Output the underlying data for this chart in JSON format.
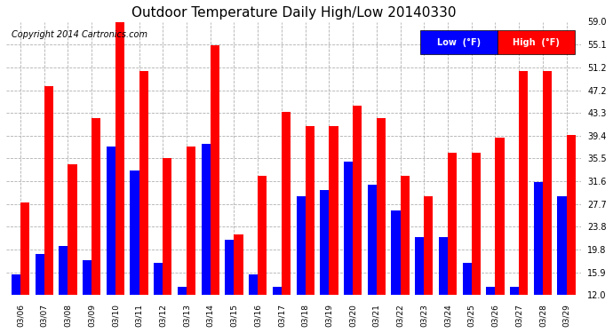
{
  "title": "Outdoor Temperature Daily High/Low 20140330",
  "copyright": "Copyright 2014 Cartronics.com",
  "legend_low": "Low  (°F)",
  "legend_high": "High  (°F)",
  "dates": [
    "03/06",
    "03/07",
    "03/08",
    "03/09",
    "03/10",
    "03/11",
    "03/12",
    "03/13",
    "03/14",
    "03/15",
    "03/16",
    "03/17",
    "03/18",
    "03/19",
    "03/20",
    "03/21",
    "03/22",
    "03/23",
    "03/24",
    "03/25",
    "03/26",
    "03/27",
    "03/28",
    "03/29"
  ],
  "low": [
    15.5,
    19.0,
    20.5,
    18.0,
    37.5,
    33.5,
    17.5,
    13.5,
    38.0,
    21.5,
    15.5,
    13.5,
    29.0,
    30.0,
    35.0,
    31.0,
    26.5,
    22.0,
    22.0,
    17.5,
    13.5,
    13.5,
    31.5,
    29.0
  ],
  "high": [
    28.0,
    48.0,
    34.5,
    42.5,
    59.0,
    50.5,
    35.5,
    37.5,
    55.0,
    22.5,
    32.5,
    43.5,
    41.0,
    41.0,
    44.5,
    42.5,
    32.5,
    29.0,
    36.5,
    36.5,
    39.0,
    50.5,
    50.5,
    39.5
  ],
  "ylim": [
    12.0,
    59.0
  ],
  "yticks": [
    12.0,
    15.9,
    19.8,
    23.8,
    27.7,
    31.6,
    35.5,
    39.4,
    43.3,
    47.2,
    51.2,
    55.1,
    59.0
  ],
  "color_low": "#0000ff",
  "color_high": "#ff0000",
  "bg_color": "#ffffff",
  "grid_color": "#b0b0b0",
  "title_fontsize": 11,
  "copyright_fontsize": 7,
  "bar_width": 0.38
}
